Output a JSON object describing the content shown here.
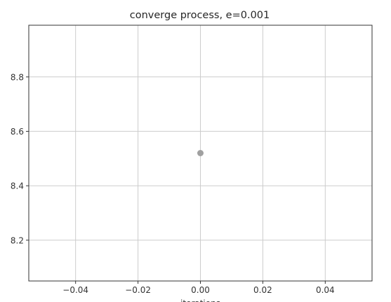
{
  "chart_data": {
    "type": "scatter",
    "title": "converge process, e=0.001",
    "xlabel": "iterations",
    "ylabel": "",
    "xlim": [
      -0.055,
      0.055
    ],
    "ylim": [
      8.05,
      8.99
    ],
    "xticks": [
      -0.04,
      -0.02,
      0.0,
      0.02,
      0.04
    ],
    "xtick_labels": [
      "−0.04",
      "−0.02",
      "0.00",
      "0.02",
      "0.04"
    ],
    "yticks": [
      8.2,
      8.4,
      8.6,
      8.8
    ],
    "ytick_labels": [
      "8.2",
      "8.4",
      "8.6",
      "8.8"
    ],
    "grid": true,
    "series": [
      {
        "x": [
          0.0
        ],
        "y": [
          8.52
        ],
        "color": "#a0a0a0"
      }
    ]
  }
}
